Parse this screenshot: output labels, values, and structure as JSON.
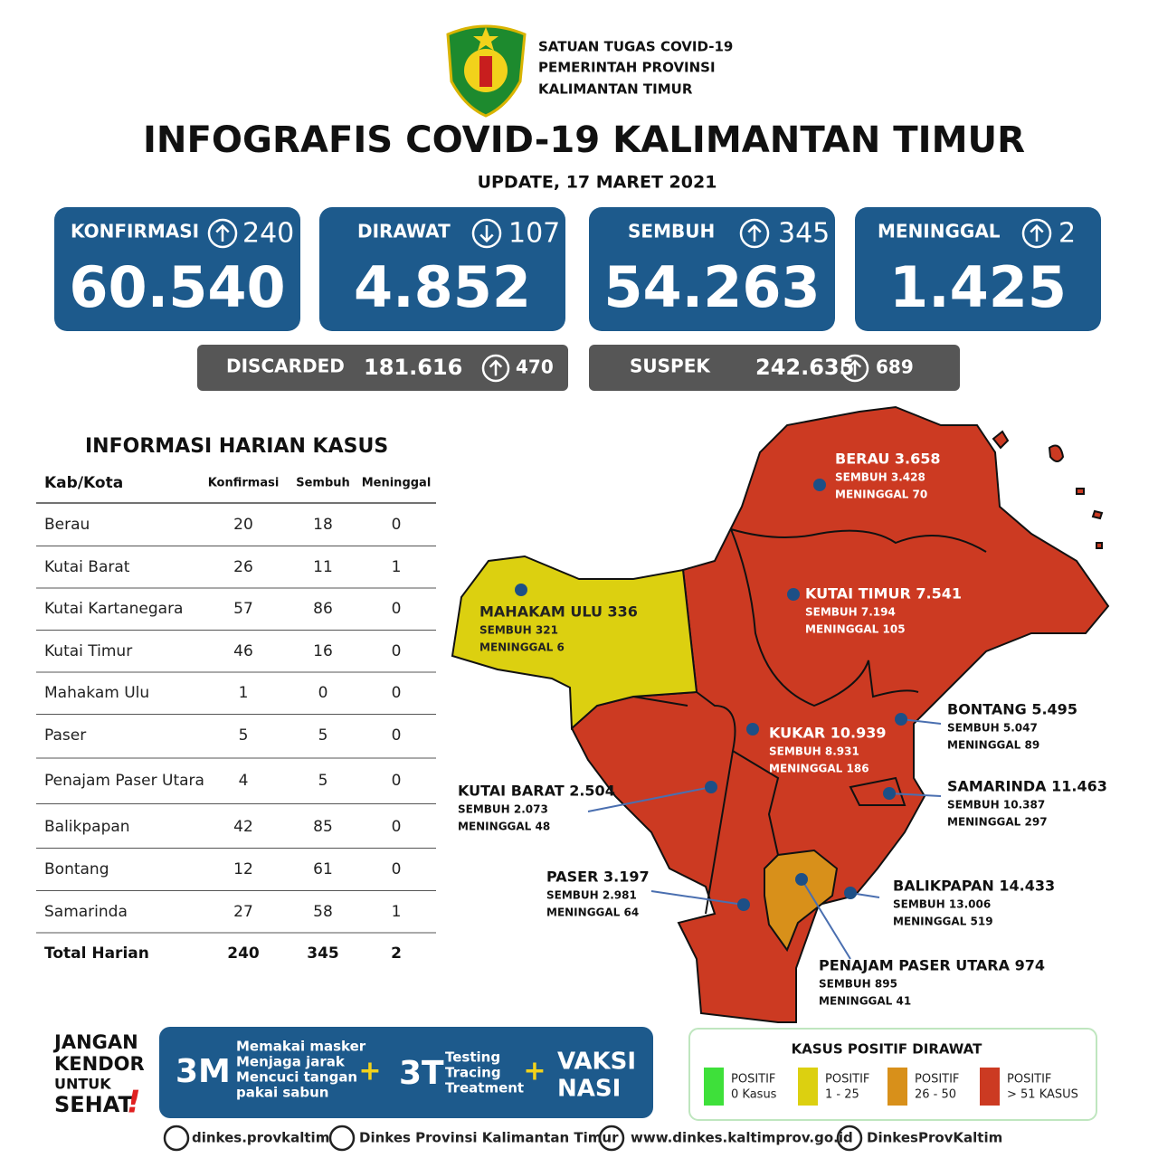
{
  "header": {
    "org": [
      "SATUAN TUGAS COVID-19",
      "PEMERINTAH PROVINSI",
      "KALIMANTAN TIMUR"
    ],
    "title": "INFOGRAFIS COVID-19 KALIMANTAN TIMUR",
    "update": "UPDATE, 17 MARET 2021"
  },
  "stats": [
    {
      "label": "KONFIRMASI",
      "change": "240",
      "value": "60.540"
    },
    {
      "label": "DIRAWAT",
      "change": "107",
      "value": "4.852"
    },
    {
      "label": "SEMBUH",
      "change": "345",
      "value": "54.263"
    },
    {
      "label": "MENINGGAL",
      "change": "2",
      "value": "1.425"
    }
  ],
  "secondary": [
    {
      "label": "DISCARDED",
      "value": "181.616",
      "change": "470"
    },
    {
      "label": "SUSPEK",
      "value": "242.635",
      "change": "689"
    }
  ],
  "table": {
    "title": "INFORMASI HARIAN KASUS",
    "headers": [
      "Kab/Kota",
      "Konfirmasi",
      "Sembuh",
      "Meninggal"
    ],
    "rows": [
      [
        "Berau",
        "20",
        "18",
        "0"
      ],
      [
        "Kutai Barat",
        "26",
        "11",
        "1"
      ],
      [
        "Kutai Kartanegara",
        "57",
        "86",
        "0"
      ],
      [
        "Kutai Timur",
        "46",
        "16",
        "0"
      ],
      [
        "Mahakam Ulu",
        "1",
        "0",
        "0"
      ],
      [
        "Paser",
        "5",
        "5",
        "0"
      ],
      [
        "Penajam Paser Utara",
        "4",
        "5",
        "0"
      ],
      [
        "Balikpapan",
        "42",
        "85",
        "0"
      ],
      [
        "Bontang",
        "12",
        "61",
        "0"
      ],
      [
        "Samarinda",
        "27",
        "58",
        "1"
      ]
    ],
    "total": [
      "Total Harian",
      "240",
      "345",
      "2"
    ]
  },
  "map": {
    "regions": [
      {
        "label": "BERAU  3.658",
        "sembuh": "SEMBUH 3.428",
        "meninggal": "MENINGGAL 70"
      },
      {
        "label": "KUTAI TIMUR 7.541",
        "sembuh": "SEMBUH 7.194",
        "meninggal": "MENINGGAL 105"
      },
      {
        "label": "MAHAKAM ULU  336",
        "sembuh": "SEMBUH 321",
        "meninggal": "MENINGGAL 6"
      },
      {
        "label": "KUKAR 10.939",
        "sembuh": "SEMBUH 8.931",
        "meninggal": "MENINGGAL 186"
      },
      {
        "label": "BONTANG  5.495",
        "sembuh": "SEMBUH 5.047",
        "meninggal": "MENINGGAL 89"
      },
      {
        "label": "SAMARINDA  11.463",
        "sembuh": "SEMBUH 10.387",
        "meninggal": "MENINGGAL 297"
      },
      {
        "label": "KUTAI BARAT 2.504",
        "sembuh": "SEMBUH 2.073",
        "meninggal": "MENINGGAL 48"
      },
      {
        "label": "PASER  3.197",
        "sembuh": "SEMBUH 2.981",
        "meninggal": "MENINGGAL 64"
      },
      {
        "label": "BALIKPAPAN  14.433",
        "sembuh": "SEMBUH  13.006",
        "meninggal": "MENINGGAL 519"
      },
      {
        "label": "PENAJAM PASER UTARA 974",
        "sembuh": "SEMBUH 895",
        "meninggal": "MENINGGAL 41"
      }
    ]
  },
  "footer": {
    "slogan": [
      "JANGAN",
      "KENDOR",
      "UNTUK",
      "SEHAT",
      "!"
    ],
    "m3": {
      "label": "3M",
      "items": [
        "Memakai masker",
        "Menjaga jarak",
        "Mencuci tangan",
        "pakai sabun"
      ]
    },
    "t3": {
      "label": "3T",
      "items": [
        "Testing",
        "Tracing",
        "Treatment"
      ]
    },
    "plus": "+",
    "vaksin": [
      "VAKSI",
      "NASI"
    ],
    "legend": {
      "title": "KASUS POSITIF DIRAWAT",
      "items": [
        [
          "POSITIF",
          "0 Kasus"
        ],
        [
          "POSITIF",
          "1 - 25"
        ],
        [
          "POSITIF",
          "26 - 50"
        ],
        [
          "POSITIF",
          "> 51 KASUS"
        ]
      ]
    },
    "social": [
      "dinkes.provkaltim",
      "Dinkes Provinsi Kalimantan Timur",
      "www.dinkes.kaltimprov.go.id",
      "DinkesProvKaltim"
    ]
  }
}
